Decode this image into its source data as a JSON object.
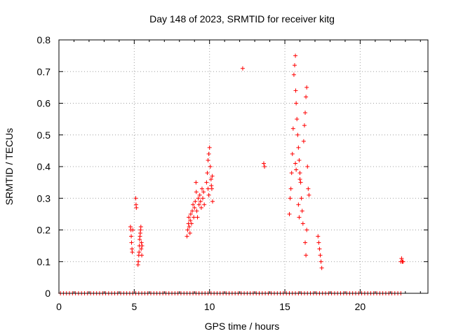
{
  "chart_data": {
    "type": "scatter",
    "title": "Day 148 of 2023, SRMTID for receiver kitg",
    "xlabel": "GPS time / hours",
    "ylabel": "SRMTID / TECUs",
    "xlim": [
      0,
      24.5
    ],
    "ylim": [
      0,
      0.8
    ],
    "x_ticks": [
      0,
      5,
      10,
      15,
      20
    ],
    "x_tick_labels": [
      "0",
      "5",
      "10",
      "15",
      "20"
    ],
    "y_ticks": [
      0,
      0.1,
      0.2,
      0.3,
      0.4,
      0.5,
      0.6,
      0.7,
      0.8
    ],
    "y_tick_labels": [
      "0",
      "0.1",
      "0.2",
      "0.3",
      "0.4",
      "0.5",
      "0.6",
      "0.7",
      "0.8"
    ],
    "grid": true,
    "marker": "plus",
    "series": [
      {
        "name": "SRMTID",
        "color": "#ff0000",
        "points": [
          [
            4.75,
            0.21
          ],
          [
            4.78,
            0.2
          ],
          [
            4.8,
            0.18
          ],
          [
            4.82,
            0.16
          ],
          [
            4.85,
            0.14
          ],
          [
            4.87,
            0.13
          ],
          [
            4.9,
            0.2
          ],
          [
            5.1,
            0.3
          ],
          [
            5.12,
            0.28
          ],
          [
            5.14,
            0.27
          ],
          [
            5.25,
            0.09
          ],
          [
            5.27,
            0.1
          ],
          [
            5.3,
            0.12
          ],
          [
            5.32,
            0.13
          ],
          [
            5.34,
            0.15
          ],
          [
            5.36,
            0.17
          ],
          [
            5.38,
            0.18
          ],
          [
            5.4,
            0.19
          ],
          [
            5.42,
            0.2
          ],
          [
            5.44,
            0.21
          ],
          [
            5.46,
            0.14
          ],
          [
            5.48,
            0.16
          ],
          [
            5.5,
            0.12
          ],
          [
            5.52,
            0.15
          ],
          [
            8.5,
            0.18
          ],
          [
            8.55,
            0.2
          ],
          [
            8.6,
            0.22
          ],
          [
            8.62,
            0.24
          ],
          [
            8.65,
            0.21
          ],
          [
            8.7,
            0.19
          ],
          [
            8.72,
            0.23
          ],
          [
            8.75,
            0.25
          ],
          [
            8.8,
            0.22
          ],
          [
            8.85,
            0.26
          ],
          [
            8.9,
            0.28
          ],
          [
            8.95,
            0.24
          ],
          [
            9.0,
            0.27
          ],
          [
            9.05,
            0.29
          ],
          [
            9.1,
            0.35
          ],
          [
            9.12,
            0.32
          ],
          [
            9.15,
            0.26
          ],
          [
            9.2,
            0.24
          ],
          [
            9.25,
            0.3
          ],
          [
            9.3,
            0.28
          ],
          [
            9.35,
            0.31
          ],
          [
            9.4,
            0.29
          ],
          [
            9.45,
            0.27
          ],
          [
            9.5,
            0.33
          ],
          [
            9.55,
            0.3
          ],
          [
            9.6,
            0.32
          ],
          [
            9.65,
            0.28
          ],
          [
            9.8,
            0.35
          ],
          [
            9.85,
            0.38
          ],
          [
            9.9,
            0.42
          ],
          [
            9.95,
            0.44
          ],
          [
            10.0,
            0.46
          ],
          [
            10.05,
            0.4
          ],
          [
            10.1,
            0.36
          ],
          [
            10.12,
            0.34
          ],
          [
            10.15,
            0.33
          ],
          [
            10.18,
            0.37
          ],
          [
            10.2,
            0.29
          ],
          [
            9.9,
            0.33
          ],
          [
            9.95,
            0.31
          ],
          [
            12.2,
            0.71
          ],
          [
            13.6,
            0.41
          ],
          [
            13.65,
            0.4
          ],
          [
            15.3,
            0.25
          ],
          [
            15.35,
            0.3
          ],
          [
            15.4,
            0.33
          ],
          [
            15.45,
            0.38
          ],
          [
            15.5,
            0.44
          ],
          [
            15.55,
            0.52
          ],
          [
            15.6,
            0.69
          ],
          [
            15.65,
            0.72
          ],
          [
            15.7,
            0.75
          ],
          [
            15.72,
            0.64
          ],
          [
            15.75,
            0.6
          ],
          [
            15.8,
            0.55
          ],
          [
            15.85,
            0.5
          ],
          [
            15.9,
            0.46
          ],
          [
            15.95,
            0.42
          ],
          [
            16.0,
            0.38
          ],
          [
            16.05,
            0.35
          ],
          [
            16.1,
            0.3
          ],
          [
            16.15,
            0.26
          ],
          [
            16.2,
            0.22
          ],
          [
            16.25,
            0.48
          ],
          [
            16.3,
            0.53
          ],
          [
            16.35,
            0.57
          ],
          [
            16.4,
            0.62
          ],
          [
            16.45,
            0.65
          ],
          [
            16.5,
            0.4
          ],
          [
            16.55,
            0.33
          ],
          [
            16.6,
            0.31
          ],
          [
            16.35,
            0.16
          ],
          [
            16.4,
            0.12
          ],
          [
            16.45,
            0.2
          ],
          [
            15.9,
            0.28
          ],
          [
            15.95,
            0.24
          ],
          [
            16.0,
            0.36
          ],
          [
            15.7,
            0.41
          ],
          [
            15.75,
            0.39
          ],
          [
            17.2,
            0.18
          ],
          [
            17.25,
            0.16
          ],
          [
            17.3,
            0.14
          ],
          [
            17.35,
            0.12
          ],
          [
            17.4,
            0.1
          ],
          [
            17.45,
            0.08
          ],
          [
            22.7,
            0.1
          ],
          [
            22.75,
            0.11
          ],
          [
            22.8,
            0.1
          ],
          [
            22.85,
            0.1
          ]
        ]
      }
    ],
    "zero_points_x": [
      0.1,
      0.3,
      0.5,
      0.7,
      0.9,
      1.1,
      1.3,
      1.5,
      1.7,
      1.9,
      2.1,
      2.3,
      2.5,
      2.7,
      2.9,
      3.1,
      3.3,
      3.5,
      3.7,
      3.9,
      4.1,
      4.3,
      4.5,
      4.7,
      4.9,
      5.1,
      5.3,
      5.5,
      5.7,
      5.9,
      6.1,
      6.3,
      6.5,
      6.7,
      6.9,
      7.1,
      7.3,
      7.5,
      7.7,
      7.9,
      8.1,
      8.3,
      8.5,
      8.7,
      8.9,
      9.1,
      9.3,
      9.5,
      9.7,
      9.9,
      10.1,
      10.3,
      10.5,
      10.7,
      10.9,
      11.1,
      11.3,
      11.5,
      11.7,
      11.9,
      12.1,
      12.3,
      12.5,
      12.7,
      12.9,
      13.1,
      13.3,
      13.5,
      13.7,
      13.9,
      14.1,
      14.3,
      14.5,
      14.7,
      14.9,
      15.1,
      15.3,
      15.5,
      15.7,
      15.9,
      16.1,
      16.3,
      16.5,
      16.7,
      16.9,
      17.1,
      17.3,
      17.5,
      17.7,
      17.9,
      18.1,
      18.3,
      18.5,
      18.7,
      18.9,
      19.1,
      19.3,
      19.5,
      19.7,
      19.9,
      20.1,
      20.3,
      20.5,
      20.7,
      20.9,
      21.1,
      21.3,
      21.5,
      21.7,
      21.9,
      22.1,
      22.3,
      22.5,
      22.7
    ]
  }
}
